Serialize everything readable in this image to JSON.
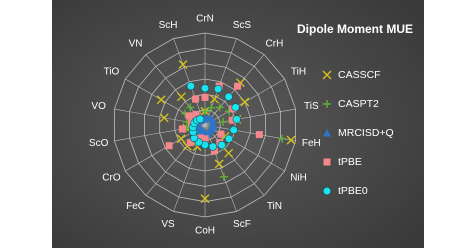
{
  "chart_data": {
    "type": "radar",
    "title": "Dipole Moment MUE",
    "categories": [
      "CrN",
      "ScS",
      "CrH",
      "TiH",
      "TiS",
      "FeH",
      "NiH",
      "TiN",
      "ScF",
      "CoH",
      "VS",
      "FeC",
      "CrO",
      "ScO",
      "VO",
      "TiO",
      "VN",
      "ScH"
    ],
    "rlim": [
      0,
      6
    ],
    "rticks": [
      1,
      2,
      3,
      4,
      5,
      6
    ],
    "grid": true,
    "legend": "right",
    "series": [
      {
        "name": "CASSCF",
        "color": "#d4c21a",
        "marker": "x",
        "values": [
          0.9,
          1.8,
          3.6,
          3,
          2.1,
          5.7,
          1.5,
          2.4,
          2.7,
          4.8,
          1.5,
          1.8,
          1.8,
          1.2,
          2.7,
          3.3,
          2.4,
          4.2
        ]
      },
      {
        "name": "CASPT2",
        "color": "#5fb233",
        "marker": "plus",
        "values": [
          0.9,
          1.2,
          1.5,
          1.8,
          1.2,
          5.1,
          1.2,
          1.8,
          3.6,
          1.2,
          1.2,
          1.2,
          0.9,
          1.2,
          1.2,
          1.5,
          1.5,
          1.8
        ]
      },
      {
        "name": "MRCISD+Q",
        "color": "#2e75c6",
        "marker": "triangle",
        "values": [
          0.4,
          0.5,
          0.6,
          0.6,
          0.5,
          0.6,
          0.5,
          0.5,
          0.6,
          0.5,
          0.4,
          0.5,
          0.5,
          0.4,
          0.5,
          0.5,
          0.4,
          0.4
        ]
      },
      {
        "name": "tPBE",
        "color": "#f4878c",
        "marker": "square",
        "values": [
          1.8,
          2.7,
          3.3,
          2.1,
          1.8,
          3.6,
          1.2,
          1.5,
          1.8,
          0.9,
          0.9,
          1.5,
          2.7,
          1.5,
          0.9,
          1.2,
          0.9,
          1.8
        ]
      },
      {
        "name": "tPBE0",
        "color": "#19e3ee",
        "marker": "circle",
        "values": [
          2.4,
          2.5,
          2.4,
          2.3,
          2.1,
          1.9,
          1.8,
          1.7,
          1.5,
          1.3,
          1.2,
          1.1,
          0.9,
          0.8,
          0.7,
          0.6,
          0.5,
          2.7
        ]
      }
    ]
  }
}
